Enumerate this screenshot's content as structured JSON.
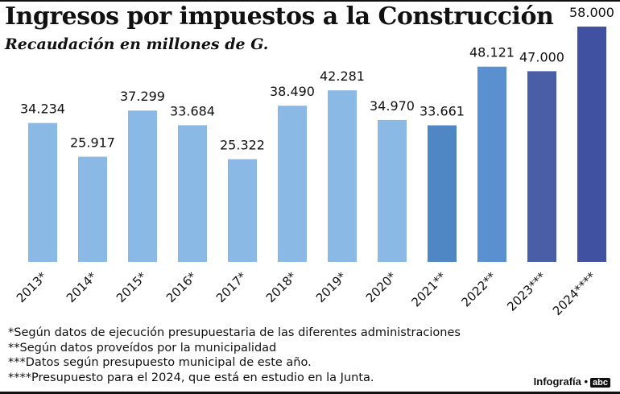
{
  "chart_data": {
    "type": "bar",
    "title": "Ingresos por impuestos a la Construcción",
    "subtitle": "Recaudación en millones de G.",
    "categories": [
      "2013*",
      "2014*",
      "2015*",
      "2016*",
      "2017*",
      "2018*",
      "2019*",
      "2020*",
      "2021**",
      "2022**",
      "2023***",
      "2024****"
    ],
    "values": [
      34234,
      25917,
      37299,
      33684,
      25322,
      38490,
      42281,
      34970,
      33661,
      48121,
      47000,
      58000
    ],
    "labels": [
      "34.234",
      "25.917",
      "37.299",
      "33.684",
      "25.322",
      "38.490",
      "42.281",
      "34.970",
      "33.661",
      "48.121",
      "47.000",
      "58.000"
    ],
    "colors": [
      "#8bb9e5",
      "#8bb9e5",
      "#8bb9e5",
      "#8bb9e5",
      "#8bb9e5",
      "#8bb9e5",
      "#8bb9e5",
      "#8bb9e5",
      "#4f87c5",
      "#5a8fd0",
      "#4a5ea8",
      "#3f51a0"
    ],
    "ylim": [
      0,
      58000
    ],
    "grid": false
  },
  "notes": [
    "*Según datos de ejecución presupuestaria de las diferentes administraciones",
    "**Según datos proveídos por la municipalidad",
    "***Datos según presupuesto municipal de este año.",
    "****Presupuesto para el 2024, que está en estudio en la Junta."
  ],
  "credit": {
    "label": "Infografía •",
    "logo": "abc"
  }
}
